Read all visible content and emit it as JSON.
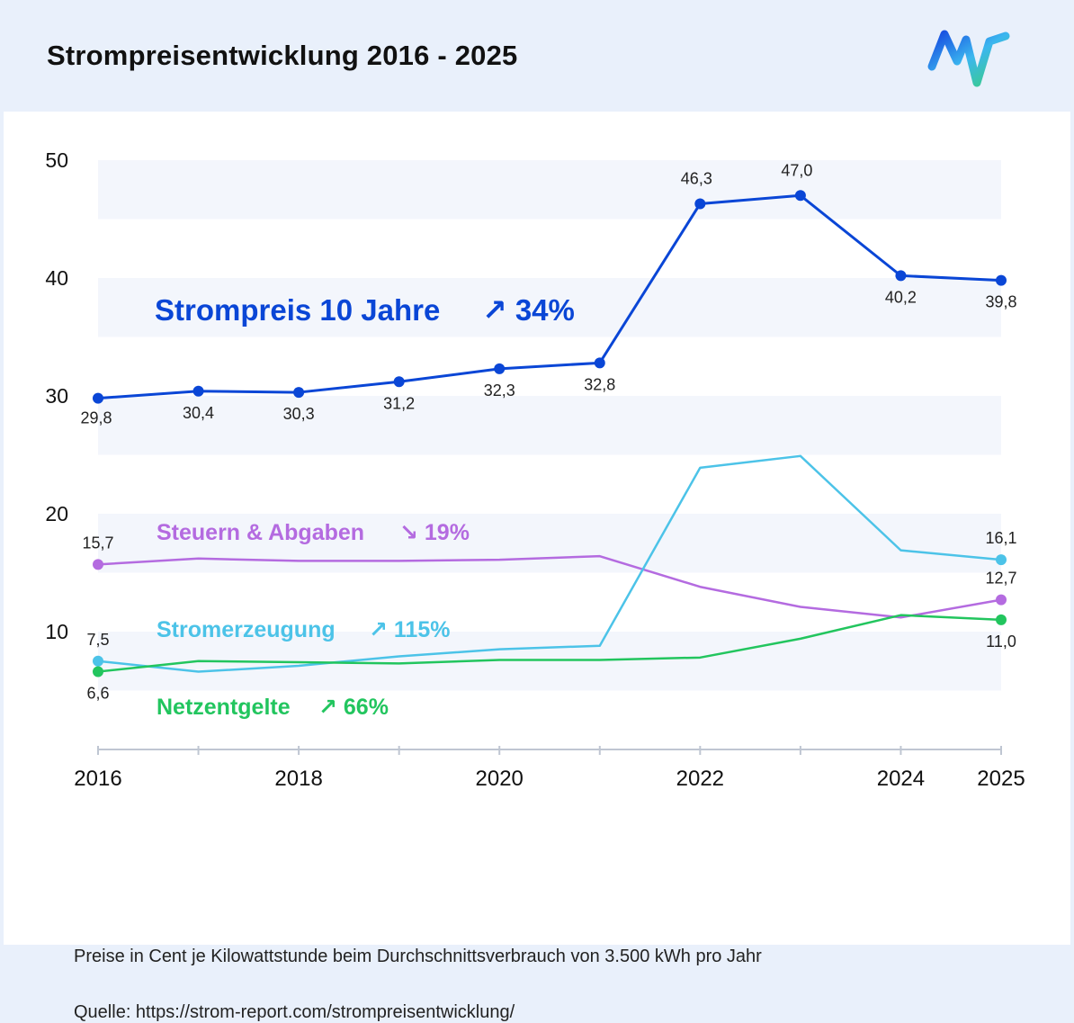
{
  "title": "Strompreisentwicklung 2016 - 2025",
  "footnote": "Preise in Cent je Kilowattstunde beim Durchschnittsverbrauch von 3.500 kWh pro Jahr",
  "source": "Quelle: https://strom-report.com/strompreisentwicklung/",
  "logo": "mw-logo-icon",
  "chart_data": {
    "type": "line",
    "title": "Strompreisentwicklung 2016 - 2025",
    "xlabel": "",
    "ylabel": "",
    "x": [
      2016,
      2017,
      2018,
      2019,
      2020,
      2021,
      2022,
      2023,
      2024,
      2025
    ],
    "x_tick_labels": [
      "2016",
      "2018",
      "2020",
      "2022",
      "2024",
      "2025"
    ],
    "x_ticks": [
      2016,
      2018,
      2020,
      2022,
      2024,
      2025
    ],
    "y_ticks": [
      10,
      20,
      30,
      40,
      50
    ],
    "y_tick_labels": [
      "10",
      "20",
      "30",
      "40",
      "50"
    ],
    "xlim": [
      2016,
      2025
    ],
    "ylim": [
      0,
      50
    ],
    "grid": "horizontal bands",
    "series": [
      {
        "name": "Strompreis 10 Jahre",
        "change": "34%",
        "arrow": "↗",
        "color": "#0a46d6",
        "values": [
          29.8,
          30.4,
          30.3,
          31.2,
          32.3,
          32.8,
          46.3,
          47.0,
          40.2,
          39.8
        ],
        "labels": [
          "29,8",
          "30,4",
          "30,3",
          "31,2",
          "32,3",
          "32,8",
          "46,3",
          "47,0",
          "40,2",
          "39,8"
        ]
      },
      {
        "name": "Steuern & Abgaben",
        "change": "19%",
        "arrow": "↘",
        "color": "#b46be0",
        "values": [
          15.7,
          16.2,
          16.0,
          16.0,
          16.1,
          16.4,
          13.8,
          12.1,
          11.2,
          12.7
        ],
        "labels": [
          "15,7",
          "",
          "",
          "",
          "",
          "",
          "",
          "",
          "",
          "12,7"
        ]
      },
      {
        "name": "Stromerzeugung",
        "change": "115%",
        "arrow": "↗",
        "color": "#4cc3e8",
        "values": [
          7.5,
          6.6,
          7.1,
          7.9,
          8.5,
          8.8,
          23.9,
          24.9,
          16.9,
          16.1
        ],
        "labels": [
          "7,5",
          "",
          "",
          "",
          "",
          "",
          "",
          "",
          "",
          "16,1"
        ]
      },
      {
        "name": "Netzentgelte",
        "change": "66%",
        "arrow": "↗",
        "color": "#22c55e",
        "values": [
          6.6,
          7.5,
          7.4,
          7.3,
          7.6,
          7.6,
          7.8,
          9.4,
          11.4,
          11.0
        ],
        "labels": [
          "6,6",
          "",
          "",
          "",
          "",
          "",
          "",
          "",
          "",
          "11,0"
        ]
      }
    ]
  }
}
